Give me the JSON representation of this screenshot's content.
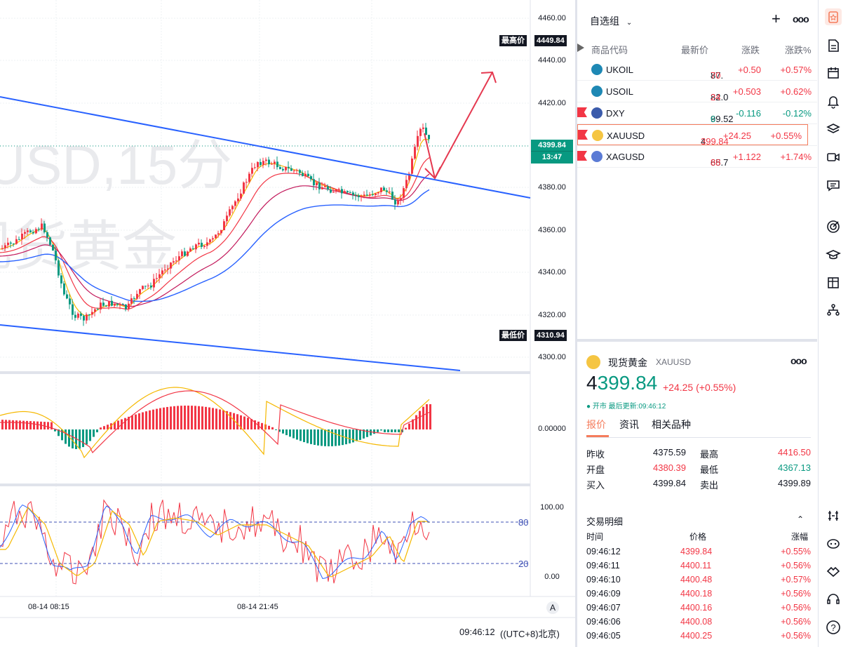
{
  "chart": {
    "watermark_line1": "USD,15分",
    "watermark_line2": "现货黄金",
    "price_axis": [
      "4460.00",
      "4440.00",
      "4420.00",
      "4380.00",
      "4360.00",
      "4340.00",
      "4320.00",
      "4300.00"
    ],
    "high_tag_label": "最高价",
    "high_tag_value": "4449.84",
    "low_tag_label": "最低价",
    "low_tag_value": "4310.94",
    "last_price": "4399.84",
    "countdown": "13:47",
    "macd_zero": "0.00000",
    "kdj_axis": [
      "100.00",
      "80",
      "20",
      "0.00"
    ],
    "time_labels": [
      "08-14 08:15",
      "08-14 21:45"
    ],
    "auto_scale": "A",
    "clock": "09:46:12",
    "timezone": "((UTC+8)北京)"
  },
  "watchlist": {
    "title": "自选组",
    "add": "+",
    "more": "ooo",
    "headers": {
      "code": "商品代码",
      "last": "最新价",
      "change": "涨跌",
      "change_pct": "涨跌%"
    },
    "rows": [
      {
        "symbol": "UKOIL",
        "last_main": "87.",
        "last_tail": "70",
        "change": "+0.50",
        "pct": "+0.57%",
        "chg_color": "red",
        "icon": "oil-icon",
        "flag": false
      },
      {
        "symbol": "USOIL",
        "last_main": "82.0",
        "last_tail": "24",
        "change": "+0.503",
        "pct": "+0.62%",
        "chg_color": "red",
        "icon": "oil-icon",
        "flag": false
      },
      {
        "symbol": "DXY",
        "last_main": "99.52",
        "last_tail": "6",
        "change": "-0.116",
        "pct": "-0.12%",
        "chg_color": "green",
        "icon": "us-flag-icon",
        "flag": true
      },
      {
        "symbol": "XAUUSD",
        "last_main": "4",
        "last_tail": "399.84",
        "change": "+24.25",
        "pct": "+0.55%",
        "chg_color": "red",
        "icon": "gold-icon",
        "flag": true,
        "selected": true
      },
      {
        "symbol": "XAGUSD",
        "last_main": "65.7",
        "last_tail": "88",
        "change": "+1.122",
        "pct": "+1.74%",
        "chg_color": "red",
        "icon": "silver-icon",
        "flag": true
      }
    ]
  },
  "detail": {
    "name": "现货黄金",
    "symbol": "XAUUSD",
    "more": "ooo",
    "price_main": "4",
    "price_tail": "399.84",
    "change": "+24.25 (+0.55%)",
    "status": "● 开市  最后更新:09:46:12",
    "tabs": [
      "报价",
      "资讯",
      "相关品种"
    ],
    "stats": [
      {
        "l1": "昨收",
        "v1": "4375.59",
        "l2": "最高",
        "v2": "4416.50",
        "c2": "red"
      },
      {
        "l1": "开盘",
        "v1": "4380.39",
        "c1": "red",
        "l2": "最低",
        "v2": "4367.13",
        "c2": "green"
      },
      {
        "l1": "买入",
        "v1": "4399.84",
        "l2": "卖出",
        "v2": "4399.89"
      }
    ],
    "trades_title": "交易明细",
    "trades_headers": {
      "time": "时间",
      "price": "价格",
      "pct": "涨幅"
    },
    "trades": [
      {
        "time": "09:46:12",
        "price": "4399.84",
        "pct": "+0.55%"
      },
      {
        "time": "09:46:11",
        "price": "4400.11",
        "pct": "+0.56%"
      },
      {
        "time": "09:46:10",
        "price": "4400.48",
        "pct": "+0.57%"
      },
      {
        "time": "09:46:09",
        "price": "4400.18",
        "pct": "+0.56%"
      },
      {
        "time": "09:46:07",
        "price": "4400.16",
        "pct": "+0.56%"
      },
      {
        "time": "09:46:06",
        "price": "4400.08",
        "pct": "+0.56%"
      },
      {
        "time": "09:46:05",
        "price": "4400.25",
        "pct": "+0.56%"
      }
    ]
  },
  "colors": {
    "up": "#f23645",
    "down": "#089981",
    "trend": "#2962ff",
    "arrow": "#e53950",
    "accent": "#f57c5c"
  }
}
